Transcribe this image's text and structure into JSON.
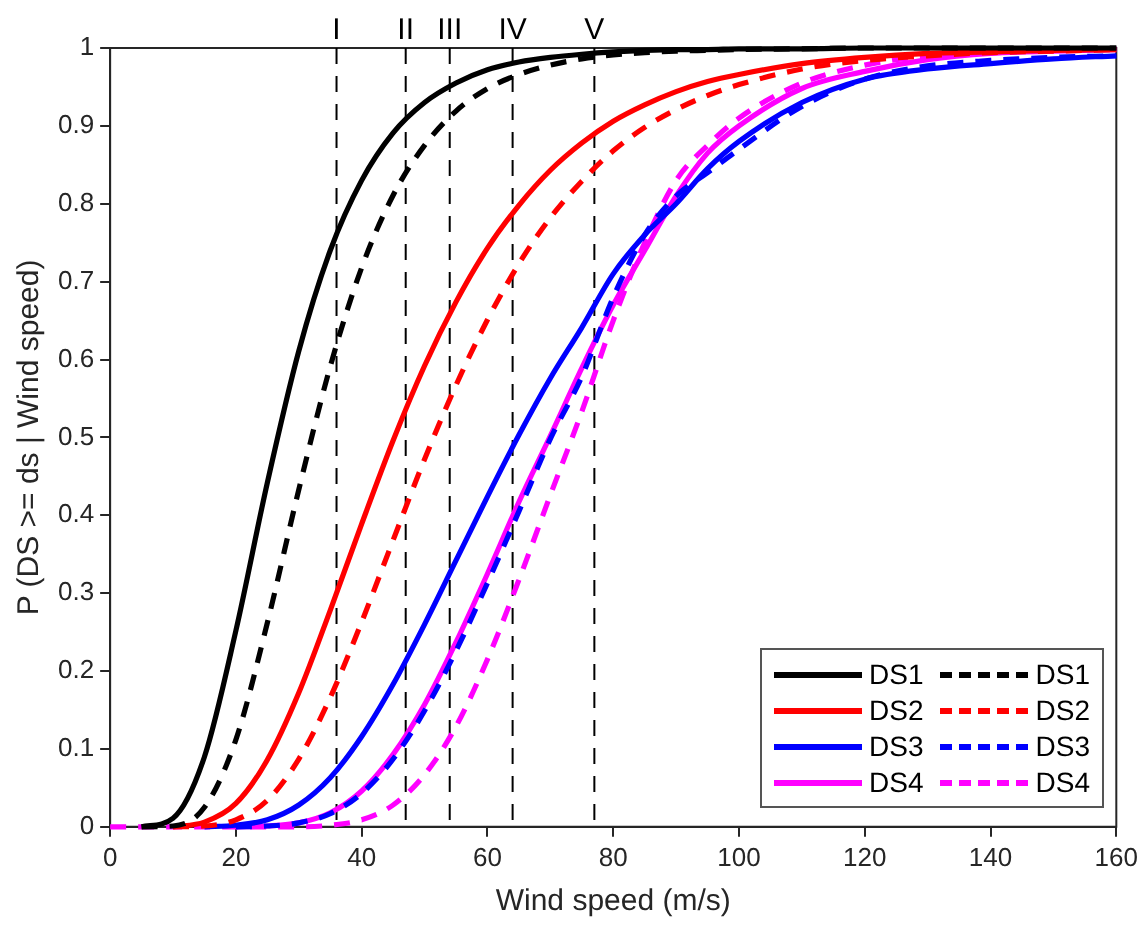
{
  "chart_data": {
    "type": "line",
    "xlabel": "Wind speed (m/s)",
    "ylabel": "P (DS >= ds | Wind speed)",
    "x": [
      0,
      5,
      10,
      15,
      20,
      25,
      30,
      35,
      40,
      45,
      50,
      55,
      60,
      65,
      70,
      75,
      80,
      85,
      90,
      95,
      100,
      110,
      120,
      130,
      140,
      150,
      160
    ],
    "series": [
      {
        "name": "DS1",
        "color": "#000000",
        "line_style": "solid",
        "values": [
          null,
          0,
          0.011,
          0.09,
          0.252,
          0.442,
          0.611,
          0.74,
          0.83,
          0.891,
          0.93,
          0.955,
          0.972,
          0.982,
          0.988,
          0.992,
          0.995,
          0.997,
          0.998,
          0.998,
          0.999,
          0.999,
          1,
          1,
          1,
          1,
          1
        ]
      },
      {
        "name": "DS1",
        "color": "#000000",
        "line_style": "dashed",
        "values": [
          null,
          0,
          0.001,
          0.025,
          0.112,
          0.262,
          0.433,
          0.591,
          0.718,
          0.811,
          0.875,
          0.919,
          0.948,
          0.966,
          0.978,
          0.986,
          0.991,
          0.994,
          0.996,
          0.997,
          0.998,
          0.999,
          1,
          1,
          1,
          1,
          1
        ]
      },
      {
        "name": "DS2",
        "color": "#ff0000",
        "line_style": "solid",
        "values": [
          null,
          null,
          0,
          0.006,
          0.03,
          0.086,
          0.172,
          0.278,
          0.389,
          0.496,
          0.592,
          0.674,
          0.743,
          0.798,
          0.843,
          0.878,
          0.906,
          0.927,
          0.944,
          0.957,
          0.966,
          0.98,
          0.988,
          0.993,
          0.995,
          0.997,
          0.998
        ]
      },
      {
        "name": "DS2",
        "color": "#ff0000",
        "line_style": "dashed",
        "values": [
          null,
          null,
          0,
          0.001,
          0.009,
          0.034,
          0.087,
          0.166,
          0.263,
          0.368,
          0.472,
          0.567,
          0.651,
          0.723,
          0.782,
          0.829,
          0.868,
          0.898,
          0.921,
          0.939,
          0.953,
          0.973,
          0.984,
          0.99,
          0.994,
          0.996,
          0.998
        ]
      },
      {
        "name": "DS3",
        "color": "#0000ff",
        "line_style": "solid",
        "values": [
          null,
          null,
          null,
          0,
          0.002,
          0.009,
          0.028,
          0.063,
          0.116,
          0.183,
          0.26,
          0.342,
          0.424,
          0.503,
          0.576,
          0.641,
          0.71,
          0.76,
          0.8,
          0.845,
          0.88,
          0.93,
          0.96,
          0.973,
          0.98,
          0.986,
          0.99
        ]
      },
      {
        "name": "DS3",
        "color": "#0000ff",
        "line_style": "dashed",
        "values": [
          null,
          null,
          null,
          null,
          0,
          0.001,
          0.005,
          0.017,
          0.043,
          0.087,
          0.149,
          0.226,
          0.313,
          0.405,
          0.498,
          0.578,
          0.68,
          0.76,
          0.81,
          0.84,
          0.87,
          0.925,
          0.96,
          0.977,
          0.984,
          0.988,
          0.99
        ]
      },
      {
        "name": "DS4",
        "color": "#ff00ff",
        "line_style": "solid",
        "values": [
          null,
          null,
          null,
          null,
          0,
          0.001,
          0.005,
          0.018,
          0.046,
          0.093,
          0.157,
          0.237,
          0.325,
          0.417,
          0.502,
          0.589,
          0.67,
          0.74,
          0.81,
          0.865,
          0.9,
          0.948,
          0.97,
          0.985,
          0.993,
          0.996,
          0.998
        ]
      },
      {
        "name": "DS4",
        "color": "#ff00ff",
        "line_style": "dashed",
        "values": [
          0,
          0,
          0,
          0,
          0,
          0,
          0,
          0.002,
          0.009,
          0.028,
          0.067,
          0.129,
          0.215,
          0.317,
          0.426,
          0.533,
          0.65,
          0.75,
          0.83,
          0.875,
          0.91,
          0.955,
          0.978,
          0.99,
          0.996,
          0.998,
          0.999
        ]
      }
    ],
    "xlim": [
      0,
      160
    ],
    "xticks": [
      0,
      20,
      40,
      60,
      80,
      100,
      120,
      140,
      160
    ],
    "ylim": [
      0,
      1
    ],
    "yticks": [
      0,
      0.1,
      0.2,
      0.3,
      0.4,
      0.5,
      0.6,
      0.7,
      0.8,
      0.9,
      1
    ],
    "ref_lines": [
      {
        "axis": "x",
        "value": 36,
        "label": "I",
        "color": "#000000",
        "line_style": "dashed"
      },
      {
        "axis": "x",
        "value": 47,
        "label": "II",
        "color": "#000000",
        "line_style": "dashed"
      },
      {
        "axis": "x",
        "value": 54,
        "label": "III",
        "color": "#000000",
        "line_style": "dashed"
      },
      {
        "axis": "x",
        "value": 64,
        "label": "IV",
        "color": "#000000",
        "line_style": "dashed"
      },
      {
        "axis": "x",
        "value": 77,
        "label": "V",
        "color": "#000000",
        "line_style": "dashed"
      }
    ],
    "grid": false,
    "legend": "bottom right",
    "marker": "none"
  }
}
